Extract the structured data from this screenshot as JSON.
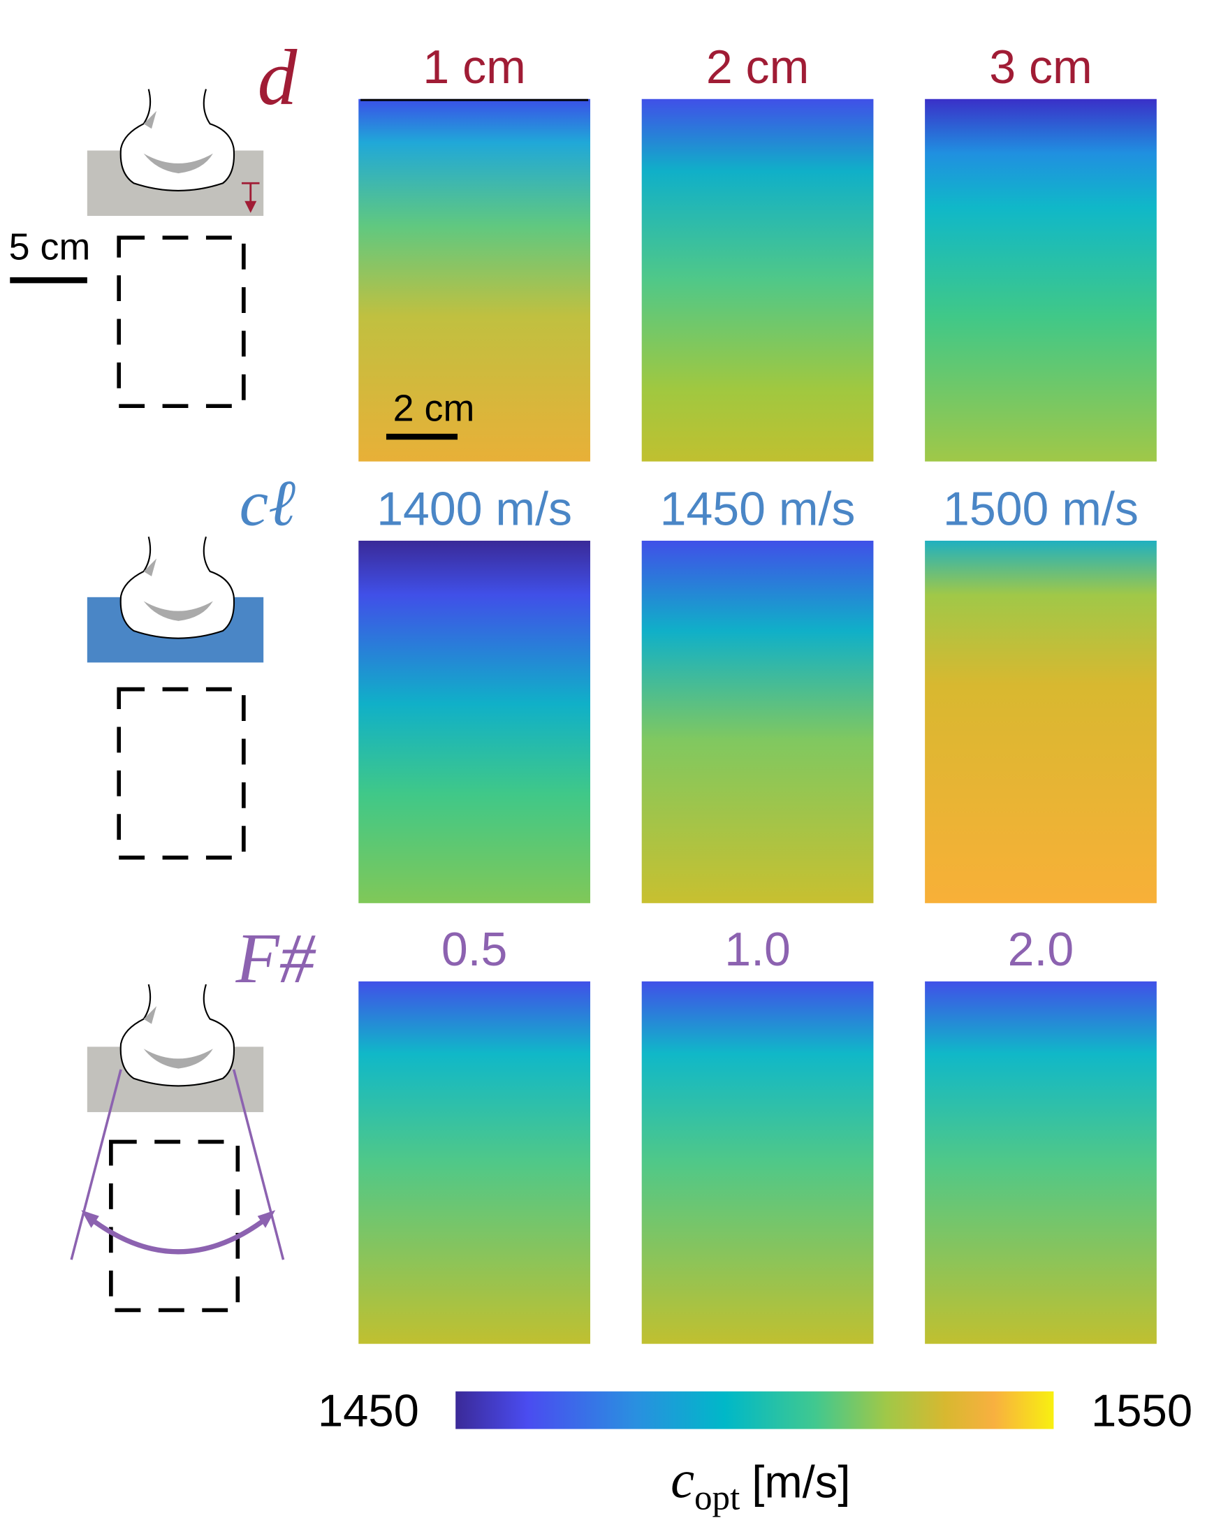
{
  "rows": [
    {
      "label": "d",
      "columns": [
        "1 cm",
        "2 cm",
        "3 cm"
      ]
    },
    {
      "label": "cℓ",
      "columns": [
        "1400 m/s",
        "1450 m/s",
        "1500 m/s"
      ]
    },
    {
      "label": "F#",
      "columns": [
        "0.5",
        "1.0",
        "2.0"
      ]
    }
  ],
  "scale_bars": {
    "sketch": "5 cm",
    "map": "2 cm"
  },
  "colorbar": {
    "min": "1450",
    "max": "1550",
    "symbol": "c",
    "subscript": "opt",
    "unit": "[m/s]"
  }
}
